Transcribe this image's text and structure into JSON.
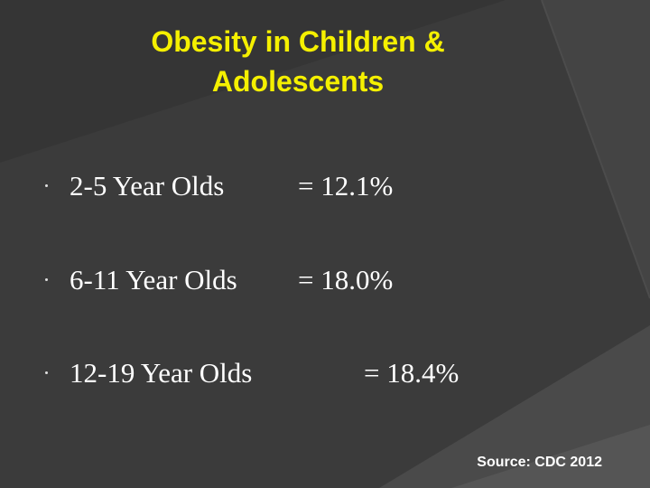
{
  "slide": {
    "title_line1": "Obesity in Children &",
    "title_line2": "Adolescents",
    "bullets": [
      {
        "label": "2-5 Year Olds",
        "value": "= 12.1%"
      },
      {
        "label": "6-11 Year Olds",
        "value": "= 18.0%"
      },
      {
        "label": "12-19 Year Olds",
        "value": "= 18.4%"
      }
    ],
    "source": "Source: CDC 2012"
  },
  "colors": {
    "background": "#3a3a3a",
    "title": "#f5f000",
    "text": "#ffffff"
  }
}
